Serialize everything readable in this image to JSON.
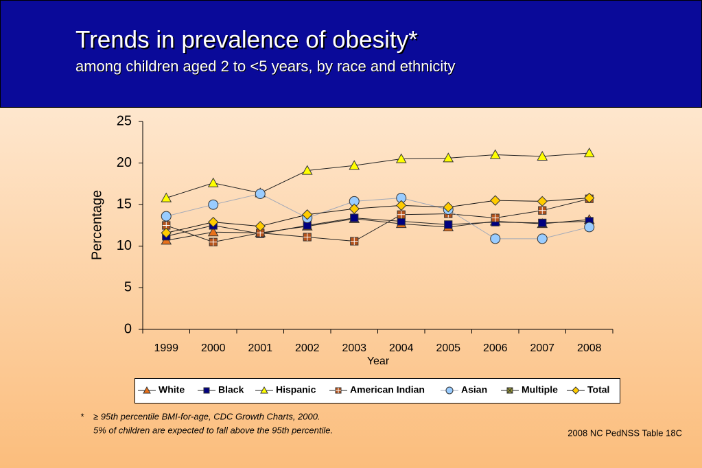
{
  "chart_data": {
    "type": "line",
    "title": "Trends in prevalence of obesity*",
    "subtitle": "among children aged 2 to <5 years, by race and ethnicity",
    "x_label": "Year",
    "y_label": "Percentage",
    "categories": [
      "1999",
      "2000",
      "2001",
      "2002",
      "2003",
      "2004",
      "2005",
      "2006",
      "2007",
      "2008"
    ],
    "ylim": [
      0,
      25
    ],
    "yticks": [
      0,
      5,
      10,
      15,
      20,
      25
    ],
    "series": [
      {
        "name": "White",
        "color": "#e8701a",
        "line_color": "#222222",
        "marker": "triangle",
        "values": [
          10.7,
          11.7,
          11.6,
          12.4,
          13.3,
          12.7,
          12.3,
          13.0,
          12.7,
          13.2
        ]
      },
      {
        "name": "Black",
        "color": "#000080",
        "line_color": "#222222",
        "marker": "square",
        "values": [
          11.2,
          12.5,
          11.5,
          12.5,
          13.4,
          13.0,
          12.6,
          12.9,
          12.8,
          13.0
        ]
      },
      {
        "name": "Hispanic",
        "color": "#ffff00",
        "line_color": "#222222",
        "marker": "triangle",
        "values": [
          15.8,
          17.6,
          16.4,
          19.1,
          19.7,
          20.5,
          20.6,
          21.0,
          20.8,
          21.2
        ]
      },
      {
        "name": "American Indian",
        "color": "#b5531c",
        "line_color": "#222222",
        "marker": "cross-square",
        "values": [
          12.5,
          10.5,
          11.6,
          11.1,
          10.6,
          13.8,
          13.9,
          13.4,
          14.3,
          15.7
        ]
      },
      {
        "name": "Asian",
        "color": "#99ccff",
        "line_color": "#a0a8b8",
        "marker": "circle",
        "values": [
          13.6,
          15.0,
          16.3,
          13.4,
          15.4,
          15.8,
          14.4,
          10.9,
          10.9,
          12.3
        ]
      },
      {
        "name": "Multiple",
        "color": "#999933",
        "line_color": "#222222",
        "marker": "x-square",
        "values": [
          null,
          null,
          null,
          null,
          null,
          null,
          null,
          null,
          null,
          null
        ]
      },
      {
        "name": "Total",
        "color": "#ffcc00",
        "line_color": "#111111",
        "marker": "diamond",
        "values": [
          11.6,
          12.9,
          12.4,
          13.8,
          14.5,
          14.9,
          14.7,
          15.5,
          15.4,
          15.8
        ]
      }
    ],
    "footnote_mark": "*",
    "footnote_lines": [
      "≥ 95th percentile BMI-for-age, CDC Growth Charts, 2000.",
      "5% of children are expected to fall above the 95th percentile."
    ],
    "source": "2008 NC PedNSS Table 18C"
  }
}
